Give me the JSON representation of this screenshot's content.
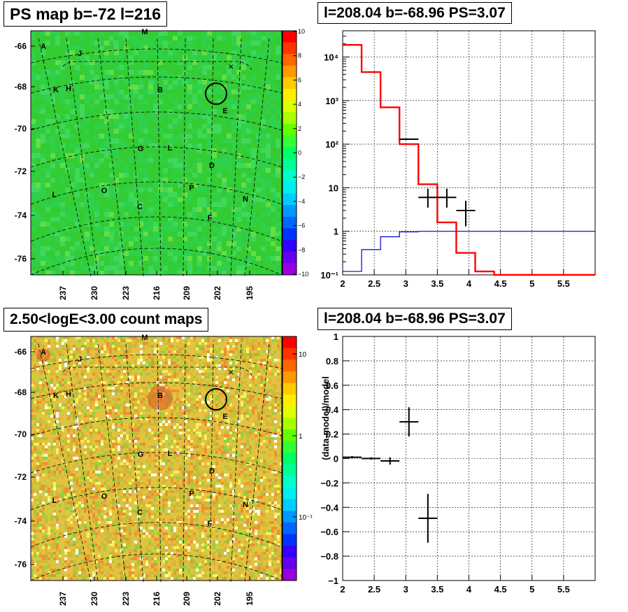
{
  "panels": {
    "tl_title": "PS map b=-72 l=216",
    "tr_title": "l=208.04 b=-68.96 PS=3.07",
    "bl_title": "2.50<logE<3.00 count maps",
    "br_title": "l=208.04 b=-68.96 PS=3.07"
  },
  "colors": {
    "model_line": "#ff0000",
    "exposure_line": "#0000cc",
    "data_points": "#000000",
    "ps_map_base": "#2ecc40",
    "count_map_base": "#d8c040"
  },
  "map_axes": {
    "y_ticks": [
      "-66",
      "-68",
      "-70",
      "-72",
      "-74",
      "-76"
    ],
    "x_ticks": [
      "237",
      "230",
      "223",
      "216",
      "209",
      "202",
      "195"
    ]
  },
  "map_labels": [
    {
      "text": "M",
      "pos": "top"
    },
    {
      "text": "A"
    },
    {
      "text": "J"
    },
    {
      "text": "K"
    },
    {
      "text": "H"
    },
    {
      "text": "B"
    },
    {
      "text": "E"
    },
    {
      "text": "G"
    },
    {
      "text": "L"
    },
    {
      "text": "D"
    },
    {
      "text": "L"
    },
    {
      "text": "O"
    },
    {
      "text": "P"
    },
    {
      "text": "N"
    },
    {
      "text": "C"
    },
    {
      "text": "F"
    }
  ],
  "ps_colorbar_ticks": [
    "10",
    "8",
    "6",
    "4",
    "2",
    "0",
    "−2",
    "−4",
    "−6",
    "−8",
    "−10"
  ],
  "count_colorbar_ticks": [
    "10",
    "1",
    "10⁻¹"
  ],
  "chart_data": [
    {
      "type": "line",
      "panel": "spectrum",
      "title": "l=208.04 b=-68.96 PS=3.07",
      "y_scale": "log",
      "xlim": [
        2,
        6
      ],
      "ylim": [
        0.1,
        40000
      ],
      "x_ticks": [
        "2",
        "2.5",
        "3",
        "3.5",
        "4",
        "4.5",
        "5",
        "5.5"
      ],
      "y_ticks": [
        "10⁻¹",
        "1",
        "10",
        "10²",
        "10³",
        "10⁴"
      ],
      "grid": true,
      "series": [
        {
          "role": "model",
          "style": "step",
          "edges": [
            2.0,
            2.3,
            2.6,
            2.9,
            3.2,
            3.5,
            3.8,
            4.1,
            4.4,
            6.0
          ],
          "values": [
            19000,
            4500,
            700,
            100,
            12,
            1.6,
            0.32,
            0.12,
            0.1
          ]
        },
        {
          "role": "exposure",
          "style": "step",
          "edges": [
            2.0,
            2.3,
            2.6,
            2.9,
            3.2,
            6.0
          ],
          "values": [
            0.12,
            0.38,
            0.75,
            0.97,
            1.0
          ]
        },
        {
          "role": "data",
          "style": "points",
          "points": [
            {
              "x": 3.05,
              "y": 130,
              "xerr": 0.15,
              "ylo": 127,
              "yhi": 133
            },
            {
              "x": 3.35,
              "y": 6,
              "xerr": 0.15,
              "ylo": 3.5,
              "yhi": 9.5
            },
            {
              "x": 3.65,
              "y": 6,
              "xerr": 0.15,
              "ylo": 3.5,
              "yhi": 9.5
            },
            {
              "x": 3.95,
              "y": 3,
              "xerr": 0.15,
              "ylo": 1.3,
              "yhi": 5
            }
          ]
        }
      ]
    },
    {
      "type": "scatter",
      "panel": "residual",
      "title": "l=208.04 b=-68.96 PS=3.07",
      "ylabel": "(data-model)/model",
      "xlim": [
        2,
        6
      ],
      "ylim": [
        -1,
        1
      ],
      "x_ticks": [
        "2",
        "2.5",
        "3",
        "3.5",
        "4",
        "4.5",
        "5",
        "5.5"
      ],
      "y_ticks": [
        "−1",
        "−0.8",
        "−0.6",
        "−0.4",
        "−0.2",
        "0",
        "0.2",
        "0.4",
        "0.6",
        "0.8",
        "1"
      ],
      "grid": true,
      "points": [
        {
          "x": 2.15,
          "y": 0.01,
          "xerr": 0.15,
          "yerr": 0.01
        },
        {
          "x": 2.45,
          "y": 0.0,
          "xerr": 0.15,
          "yerr": 0.01
        },
        {
          "x": 2.75,
          "y": -0.02,
          "xerr": 0.15,
          "yerr": 0.03
        },
        {
          "x": 3.05,
          "y": 0.3,
          "xerr": 0.15,
          "yerr": 0.12
        },
        {
          "x": 3.35,
          "y": -0.49,
          "xerr": 0.15,
          "yerr": 0.2
        }
      ]
    }
  ]
}
